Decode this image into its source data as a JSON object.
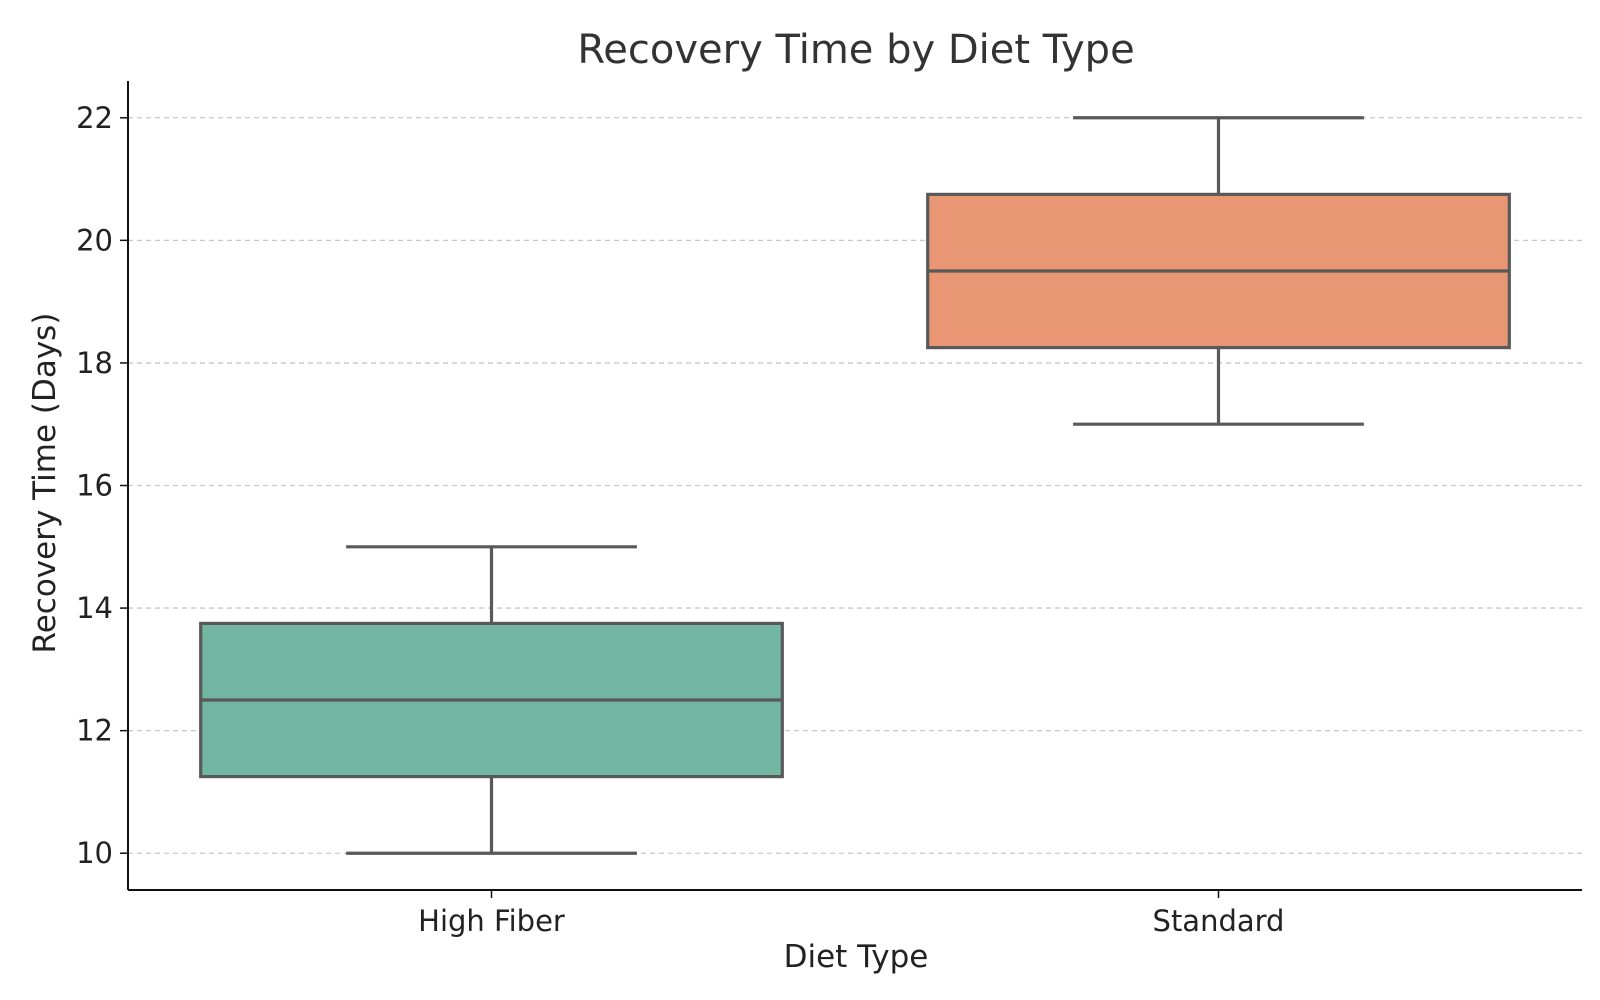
{
  "chart_data": {
    "type": "box",
    "title": "Recovery Time by Diet Type",
    "xlabel": "Diet Type",
    "ylabel": "Recovery Time (Days)",
    "categories": [
      "High Fiber",
      "Standard"
    ],
    "boxes": [
      {
        "category": "High Fiber",
        "min": 10,
        "q1": 11.25,
        "median": 12.5,
        "q3": 13.75,
        "max": 15,
        "color": "#72b5a0"
      },
      {
        "category": "Standard",
        "min": 17,
        "q1": 18.25,
        "median": 19.5,
        "q3": 20.75,
        "max": 22,
        "color": "#e89674"
      }
    ],
    "yticks": [
      10,
      12,
      14,
      16,
      18,
      20,
      22
    ],
    "ytick_labels": [
      "10",
      "12",
      "14",
      "16",
      "18",
      "20",
      "22"
    ],
    "ylim": [
      9.4,
      22.6
    ],
    "grid": "horizontal-dashed",
    "colors": {
      "box_edge": "#595959",
      "grid": "#c8c8c8",
      "axis": "#111111"
    }
  }
}
